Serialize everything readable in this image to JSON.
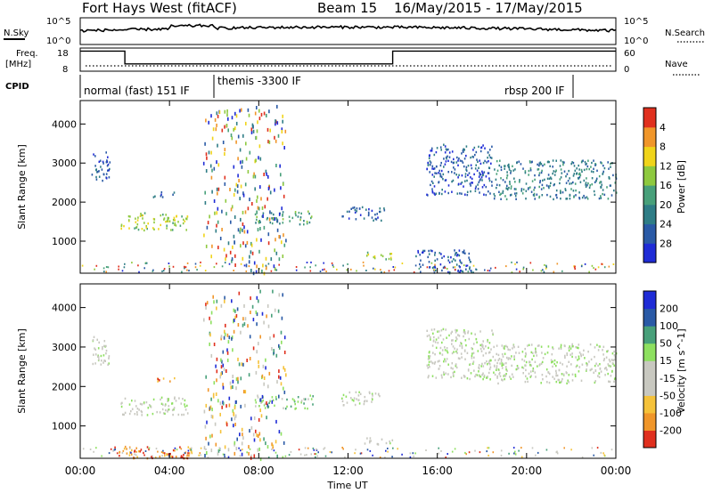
{
  "header": {
    "title": "Fort Hays West (fitACF)",
    "beam": "Beam 15",
    "date_range": "16/May/2015 - 17/May/2015"
  },
  "summary": {
    "nsky_label": "N.Sky",
    "nsearch_label": "N.Search",
    "noise_ticks": [
      "10^5",
      "10^0"
    ],
    "freq_label_1": "Freq.",
    "freq_label_2": "[MHz]",
    "freq_ticks": [
      "18",
      "8"
    ],
    "nave_label": "Nave",
    "nave_ticks": [
      "60",
      "0"
    ],
    "cpid_label": "CPID",
    "freq_steps_hours": [
      [
        0,
        17
      ],
      [
        2,
        17
      ],
      [
        2,
        11
      ],
      [
        14,
        11
      ],
      [
        14,
        17
      ],
      [
        24,
        17
      ]
    ],
    "cpid_segments": [
      {
        "label": "normal (fast) 151 IF",
        "start": 0,
        "end": 6
      },
      {
        "label": "themis -3300 IF",
        "start": 6,
        "end": 22
      },
      {
        "label": "rbsp 200 IF",
        "start": 22,
        "end": 24
      }
    ]
  },
  "chart_data": [
    {
      "type": "heatmap",
      "name": "power",
      "ylabel": "Slant Range [km]",
      "ylim": [
        180,
        4600
      ],
      "yticks": [
        1000,
        2000,
        3000,
        4000
      ],
      "xlim": [
        0,
        24
      ],
      "colorbar_label": "Power [dB]",
      "colorbar_ticks": [
        "4",
        "8",
        "12",
        "16",
        "20",
        "24",
        "28"
      ],
      "colorbar_range": [
        0,
        30
      ],
      "colors": [
        "#1f2cd6",
        "#2a5aa6",
        "#2f7d86",
        "#48a07a",
        "#8ec93f",
        "#f0d41a",
        "#f0962a",
        "#e0301e"
      ],
      "regions": [
        {
          "t0": 0.5,
          "t1": 1.3,
          "r0": 2500,
          "r1": 3300,
          "level": 1
        },
        {
          "t0": 1.8,
          "t1": 4.8,
          "r0": 1300,
          "r1": 1750,
          "level": 4
        },
        {
          "t0": 3.2,
          "t1": 4.2,
          "r0": 2150,
          "r1": 2300,
          "level": 1
        },
        {
          "t0": 7.8,
          "t1": 10.4,
          "r0": 1450,
          "r1": 1800,
          "level": 3
        },
        {
          "t0": 11.7,
          "t1": 13.6,
          "r0": 1550,
          "r1": 1900,
          "level": 1
        },
        {
          "t0": 12.7,
          "t1": 14.0,
          "r0": 550,
          "r1": 750,
          "level": 4
        },
        {
          "t0": 15.5,
          "t1": 18.5,
          "r0": 2200,
          "r1": 3500,
          "level": 1
        },
        {
          "t0": 18.5,
          "t1": 24.0,
          "r0": 2100,
          "r1": 3100,
          "level": 2
        },
        {
          "t0": 15.0,
          "t1": 17.5,
          "r0": 200,
          "r1": 800,
          "level": 1
        },
        {
          "t0": 5.5,
          "t1": 9.2,
          "r0": 200,
          "r1": 4500,
          "level": 0
        }
      ]
    },
    {
      "type": "heatmap",
      "name": "velocity",
      "ylabel": "Slant Range [km]",
      "xlabel": "Time UT",
      "ylim": [
        180,
        4600
      ],
      "yticks": [
        1000,
        2000,
        3000,
        4000
      ],
      "xlim": [
        0,
        24
      ],
      "xticks": [
        "00:00",
        "04:00",
        "08:00",
        "12:00",
        "16:00",
        "20:00",
        "00:00"
      ],
      "colorbar_label": "Velocity [m s^-1]",
      "colorbar_ticks": [
        "200",
        "100",
        "50",
        "15",
        "-15",
        "-50",
        "-100",
        "-200"
      ],
      "colorbar_range": [
        -250,
        250
      ],
      "colors": [
        "#e0301e",
        "#f0962a",
        "#f5c23a",
        "#c8c8c0",
        "#c8c8c0",
        "#8ee060",
        "#48a07a",
        "#2a5aa6",
        "#1f2cd6"
      ],
      "regions": [
        {
          "t0": 0.5,
          "t1": 1.3,
          "r0": 2500,
          "r1": 3300,
          "level": 4
        },
        {
          "t0": 1.8,
          "t1": 4.8,
          "r0": 1300,
          "r1": 1750,
          "level": 4
        },
        {
          "t0": 3.2,
          "t1": 4.2,
          "r0": 2150,
          "r1": 2300,
          "level": 1
        },
        {
          "t0": 7.8,
          "t1": 10.4,
          "r0": 1450,
          "r1": 1800,
          "level": 5
        },
        {
          "t0": 11.7,
          "t1": 13.6,
          "r0": 1550,
          "r1": 1900,
          "level": 4
        },
        {
          "t0": 12.7,
          "t1": 14.0,
          "r0": 550,
          "r1": 750,
          "level": 4
        },
        {
          "t0": 15.5,
          "t1": 18.5,
          "r0": 2200,
          "r1": 3500,
          "level": 4
        },
        {
          "t0": 18.5,
          "t1": 24.0,
          "r0": 2100,
          "r1": 3100,
          "level": 4
        },
        {
          "t0": 1.5,
          "t1": 5.0,
          "r0": 200,
          "r1": 500,
          "level": 1
        },
        {
          "t0": 5.5,
          "t1": 9.2,
          "r0": 200,
          "r1": 4500,
          "level": 8
        }
      ]
    }
  ]
}
